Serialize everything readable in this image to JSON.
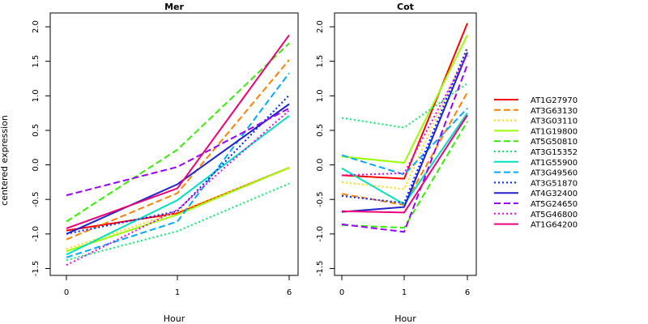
{
  "chart_data": {
    "type": "line",
    "ylabel": "centered expression",
    "xlabel": "Hour",
    "x_ticks": [
      "0",
      "1",
      "6"
    ],
    "ylim": [
      -1.6,
      2.2
    ],
    "y_ticks": [
      "-1.5",
      "-1.0",
      "-0.5",
      "0.0",
      "0.5",
      "1.0",
      "1.5",
      "2.0"
    ],
    "y_tick_values": [
      -1.5,
      -1.0,
      -0.5,
      0.0,
      0.5,
      1.0,
      1.5,
      2.0
    ],
    "grid": false,
    "legend_position": "right",
    "panels": [
      {
        "title": "Mer",
        "series": [
          {
            "name": "AT1G27970",
            "color": "#ff0000",
            "dash": "solid",
            "values": [
              -0.95,
              -0.7,
              -0.04
            ]
          },
          {
            "name": "AT3G63130",
            "color": "#ff8000",
            "dash": "dashed",
            "values": [
              -1.08,
              -0.41,
              1.52
            ]
          },
          {
            "name": "AT3G03110",
            "color": "#ffd700",
            "dash": "dotted",
            "values": [
              -1.22,
              -0.68,
              -0.05
            ]
          },
          {
            "name": "AT1G19800",
            "color": "#99ff00",
            "dash": "solid",
            "values": [
              -1.25,
              -0.72,
              -0.04
            ]
          },
          {
            "name": "AT5G50810",
            "color": "#33ee00",
            "dash": "dashed",
            "values": [
              -0.82,
              0.22,
              1.76
            ]
          },
          {
            "name": "AT3G15352",
            "color": "#00ee66",
            "dash": "dotted",
            "values": [
              -1.38,
              -0.96,
              -0.27
            ]
          },
          {
            "name": "AT1G55900",
            "color": "#00e0c0",
            "dash": "solid",
            "values": [
              -1.3,
              -0.51,
              0.71
            ]
          },
          {
            "name": "AT3G49560",
            "color": "#00aaff",
            "dash": "dashed",
            "values": [
              -1.34,
              -0.82,
              1.33
            ]
          },
          {
            "name": "AT3G51870",
            "color": "#0022ff",
            "dash": "dotted",
            "values": [
              -1.0,
              -0.67,
              1.01
            ]
          },
          {
            "name": "AT4G32400",
            "color": "#2222cc",
            "dash": "solid",
            "values": [
              -1.0,
              -0.28,
              0.88
            ]
          },
          {
            "name": "AT5G24650",
            "color": "#9900ff",
            "dash": "dashed",
            "values": [
              -0.44,
              -0.03,
              0.82
            ]
          },
          {
            "name": "AT5G46800",
            "color": "#ee00ee",
            "dash": "dotted",
            "values": [
              -1.45,
              -0.65,
              0.79
            ]
          },
          {
            "name": "AT1G64200",
            "color": "#ee0077",
            "dash": "solid",
            "values": [
              -0.92,
              -0.34,
              1.88
            ]
          }
        ]
      },
      {
        "title": "Cot",
        "series": [
          {
            "name": "AT1G27970",
            "color": "#ff0000",
            "dash": "solid",
            "values": [
              -0.15,
              -0.2,
              2.05
            ]
          },
          {
            "name": "AT3G63130",
            "color": "#ff8000",
            "dash": "dashed",
            "values": [
              -0.42,
              -0.58,
              1.05
            ]
          },
          {
            "name": "AT3G03110",
            "color": "#ffd700",
            "dash": "dotted",
            "values": [
              -0.25,
              -0.35,
              1.68
            ]
          },
          {
            "name": "AT1G19800",
            "color": "#99ff00",
            "dash": "solid",
            "values": [
              0.12,
              0.03,
              1.88
            ]
          },
          {
            "name": "AT5G50810",
            "color": "#33ee00",
            "dash": "dashed",
            "values": [
              -0.87,
              -0.91,
              0.63
            ]
          },
          {
            "name": "AT3G15352",
            "color": "#00ee66",
            "dash": "dotted",
            "values": [
              0.68,
              0.54,
              1.18
            ]
          },
          {
            "name": "AT1G55900",
            "color": "#00e0c0",
            "dash": "solid",
            "values": [
              -0.05,
              -0.57,
              0.75
            ]
          },
          {
            "name": "AT3G49560",
            "color": "#00aaff",
            "dash": "dashed",
            "values": [
              0.14,
              -0.14,
              0.82
            ]
          },
          {
            "name": "AT3G51870",
            "color": "#0022ff",
            "dash": "dotted",
            "values": [
              -0.45,
              -0.55,
              1.7
            ]
          },
          {
            "name": "AT4G32400",
            "color": "#2222cc",
            "dash": "solid",
            "values": [
              -0.68,
              -0.61,
              1.63
            ]
          },
          {
            "name": "AT5G24650",
            "color": "#9900ff",
            "dash": "dashed",
            "values": [
              -0.86,
              -0.97,
              1.45
            ]
          },
          {
            "name": "AT5G46800",
            "color": "#ee00ee",
            "dash": "dotted",
            "values": [
              -0.15,
              -0.12,
              1.6
            ]
          },
          {
            "name": "AT1G64200",
            "color": "#ee0077",
            "dash": "solid",
            "values": [
              -0.67,
              -0.69,
              0.72
            ]
          }
        ]
      }
    ]
  }
}
